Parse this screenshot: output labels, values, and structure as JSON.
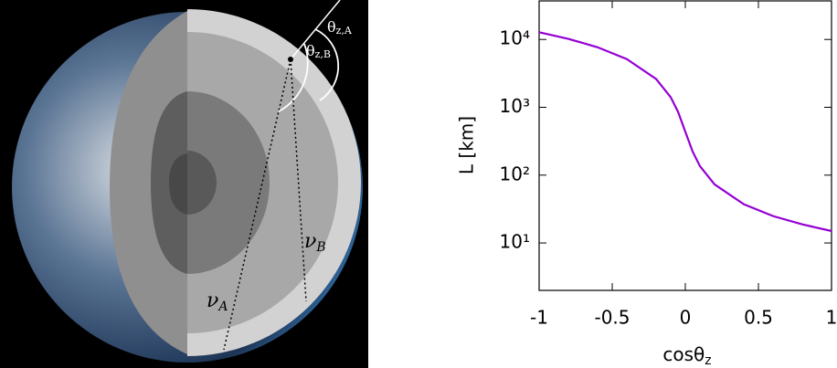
{
  "diagram": {
    "labels": [
      {
        "symbol": "θ",
        "subscript": "z,A"
      },
      {
        "symbol": "θ",
        "subscript": "z,B"
      },
      {
        "symbol": "ν",
        "subscript": "B"
      },
      {
        "symbol": "ν",
        "subscript": "A"
      }
    ]
  },
  "chart_data": {
    "type": "line",
    "xlabel": {
      "text": "cosθ",
      "subscript": "z"
    },
    "ylabel": "L [km]",
    "x": [
      -1,
      -0.8,
      -0.6,
      -0.4,
      -0.2,
      -0.1,
      -0.05,
      0,
      0.05,
      0.1,
      0.2,
      0.4,
      0.6,
      0.8,
      1
    ],
    "values": [
      12757,
      10212,
      7670,
      5134,
      2621,
      1410,
      860,
      437,
      222.5,
      135.7,
      73,
      37.3,
      24.9,
      18.8,
      15
    ],
    "color": "#9400d3",
    "xlim": [
      -1,
      1
    ],
    "xticks": [
      -1,
      -0.5,
      0,
      0.5,
      1
    ],
    "ylim": [
      2,
      37000
    ],
    "log_y": true,
    "yticks": [
      {
        "value": 10,
        "label": "10¹"
      },
      {
        "value": 100,
        "label": "10²"
      },
      {
        "value": 1000,
        "label": "10³"
      },
      {
        "value": 10000,
        "label": "10⁴"
      }
    ]
  }
}
